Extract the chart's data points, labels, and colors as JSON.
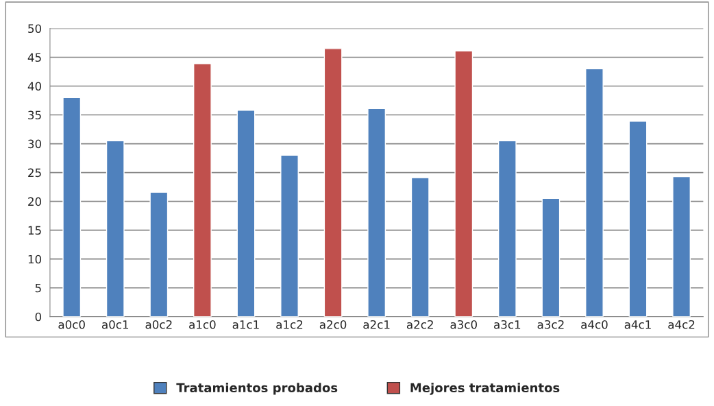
{
  "chart_data": {
    "type": "bar",
    "categories": [
      "a0c0",
      "a0c1",
      "a0c2",
      "a1c0",
      "a1c1",
      "a1c2",
      "a2c0",
      "a2c1",
      "a2c2",
      "a3c0",
      "a3c1",
      "a3c2",
      "a4c0",
      "a4c1",
      "a4c2"
    ],
    "series": [
      {
        "name": "Tratamientos probados",
        "color": "#4f81bd",
        "values": [
          38.0,
          30.5,
          21.6,
          null,
          35.8,
          28.0,
          null,
          36.1,
          24.1,
          null,
          30.5,
          20.5,
          43.0,
          33.9,
          24.3
        ]
      },
      {
        "name": "Mejores tratamientos",
        "color": "#c0504d",
        "values": [
          null,
          null,
          null,
          43.9,
          null,
          null,
          46.5,
          null,
          null,
          46.1,
          null,
          null,
          null,
          null,
          null
        ]
      }
    ],
    "ylim": [
      0,
      50
    ],
    "yticks": [
      0,
      5,
      10,
      15,
      20,
      25,
      30,
      35,
      40,
      45,
      50
    ],
    "grid": "y",
    "legend": "bottom"
  }
}
